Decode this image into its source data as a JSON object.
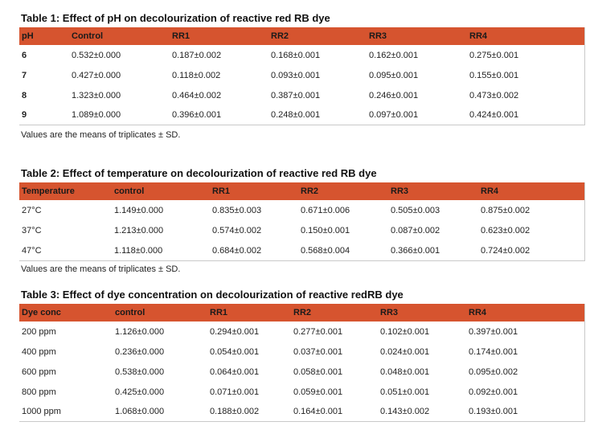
{
  "tables": [
    {
      "title": "Table 1: Effect of pH on decolourization of reactive red RB dye",
      "headers": [
        "pH",
        "Control",
        "RR1",
        "RR2",
        "RR3",
        "RR4"
      ],
      "rows": [
        [
          "6",
          "0.532±0.000",
          "0.187±0.002",
          "0.168±0.001",
          "0.162±0.001",
          "0.275±0.001"
        ],
        [
          "7",
          "0.427±0.000",
          "0.118±0.002",
          "0.093±0.001",
          "0.095±0.001",
          "0.155±0.001"
        ],
        [
          "8",
          "1.323±0.000",
          "0.464±0.002",
          "0.387±0.001",
          "0.246±0.001",
          "0.473±0.002"
        ],
        [
          "9",
          "1.089±0.000",
          "0.396±0.001",
          "0.248±0.001",
          "0.097±0.001",
          "0.424±0.001"
        ]
      ],
      "note": "Values are the means of triplicates ± SD."
    },
    {
      "title": "Table 2: Effect of temperature on decolourization of reactive red RB dye",
      "headers": [
        "Temperature",
        "control",
        "RR1",
        "RR2",
        "RR3",
        "RR4"
      ],
      "rows": [
        [
          "27°C",
          "1.149±0.000",
          "0.835±0.003",
          "0.671±0.006",
          "0.505±0.003",
          "0.875±0.002"
        ],
        [
          "37°C",
          "1.213±0.000",
          "0.574±0.002",
          "0.150±0.001",
          "0.087±0.002",
          "0.623±0.002"
        ],
        [
          "47°C",
          "1.118±0.000",
          "0.684±0.002",
          "0.568±0.004",
          "0.366±0.001",
          "0.724±0.002"
        ]
      ],
      "note": "Values are the means of triplicates ± SD."
    },
    {
      "title": "Table 3: Effect of dye concentration on decolourization of reactive redRB dye",
      "headers": [
        "Dye conc",
        "control",
        "RR1",
        "RR2",
        "RR3",
        "RR4"
      ],
      "rows": [
        [
          "200 ppm",
          "1.126±0.000",
          "0.294±0.001",
          "0.277±0.001",
          "0.102±0.001",
          "0.397±0.001"
        ],
        [
          "400 ppm",
          "0.236±0.000",
          "0.054±0.001",
          "0.037±0.001",
          "0.024±0.001",
          "0.174±0.001"
        ],
        [
          "600 ppm",
          "0.538±0.000",
          "0.064±0.001",
          "0.058±0.001",
          "0.048±0.001",
          "0.095±0.002"
        ],
        [
          "800 ppm",
          "0.425±0.000",
          "0.071±0.001",
          "0.059±0.001",
          "0.051±0.001",
          "0.092±0.001"
        ],
        [
          "1000 ppm",
          "1.068±0.000",
          "0.188±0.002",
          "0.164±0.001",
          "0.143±0.002",
          "0.193±0.001"
        ]
      ],
      "note": ""
    }
  ],
  "colors": {
    "header_bg": "#d6542f",
    "text": "#1a1a1a"
  }
}
